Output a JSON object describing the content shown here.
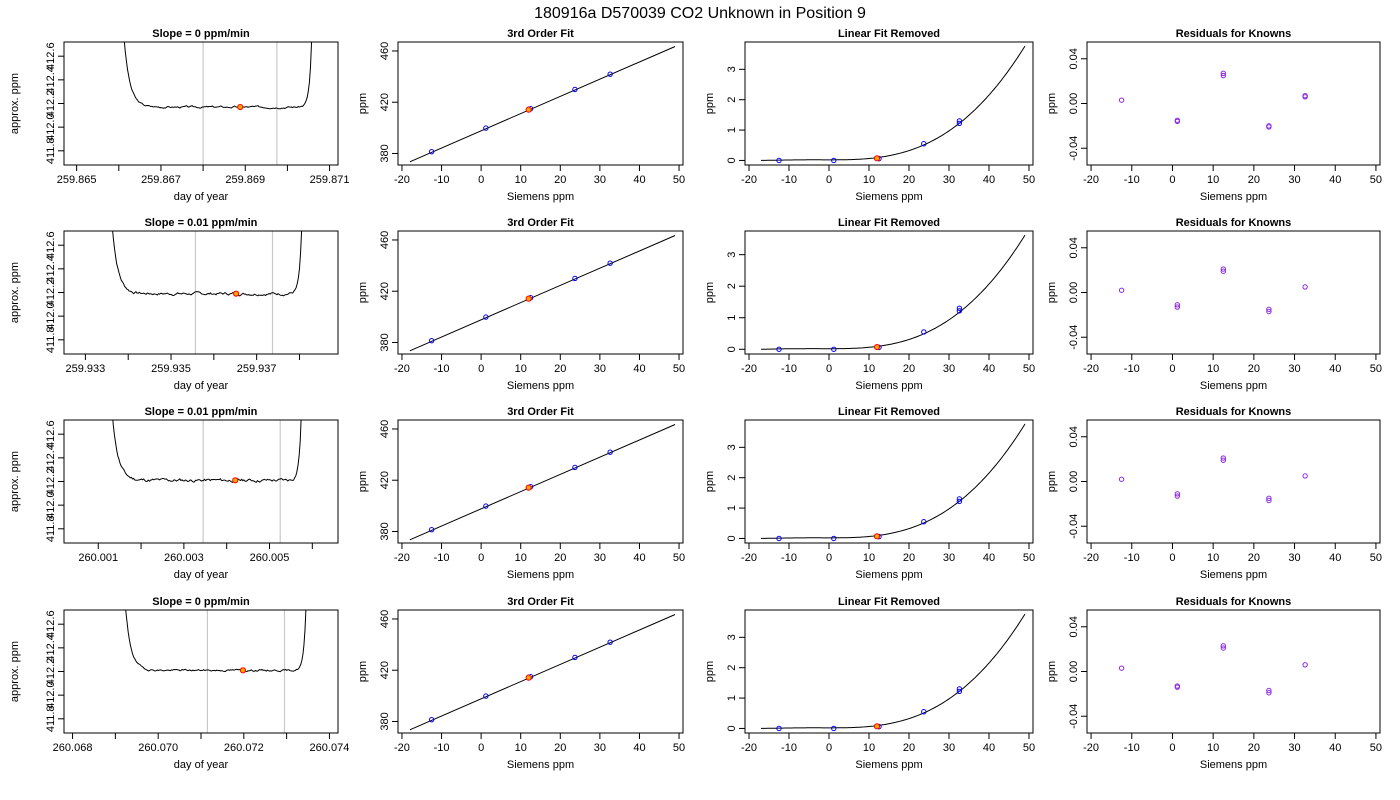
{
  "figure_title": "180916a      D570039   CO2 Unknown in Position  9",
  "colors": {
    "line": "#000000",
    "known_point": "#0000ff",
    "resid_point": "#8a2be2",
    "unknown_point": "#ff0000",
    "unknown_fill": "#ffa500",
    "marker_line": "#c8c8c8"
  },
  "chart_data": [
    {
      "type": "line",
      "row": 0,
      "col": 0,
      "panel": "timeseries",
      "title": "Slope =  0  ppm/min",
      "xlabel": "day of year",
      "ylabel": "approx. ppm",
      "xlim": [
        259.8647,
        259.8712
      ],
      "ylim": [
        411.68,
        412.72
      ],
      "xticks": [
        259.865,
        259.866,
        259.867,
        259.868,
        259.869,
        259.87,
        259.871
      ],
      "xtick_labels": [
        "259.865",
        "",
        "259.867",
        "",
        "259.869",
        "",
        "259.871"
      ],
      "yticks": [
        411.8,
        412.0,
        412.2,
        412.4,
        412.6
      ],
      "ytick_labels": [
        "411.8",
        "412.0",
        "412.2",
        "412.4",
        "412.6"
      ],
      "trace": {
        "x_start": 259.8661,
        "x_end": 259.8706,
        "base": 412.17,
        "wiggle": 0.02,
        "seed": 3
      },
      "vlines": [
        259.868,
        259.86975
      ],
      "unknown_point": [
        259.86888,
        412.17
      ]
    },
    {
      "type": "line",
      "row": 0,
      "col": 1,
      "panel": "fit",
      "title": "3rd Order Fit",
      "xlabel": "Siemens ppm",
      "ylabel": "ppm",
      "xlim": [
        -21,
        51
      ],
      "ylim": [
        371,
        467
      ],
      "xticks": [
        -20,
        -10,
        0,
        10,
        20,
        30,
        40,
        50
      ],
      "yticks": [
        380,
        420,
        460
      ],
      "line": {
        "x": [
          -18,
          49
        ],
        "y": [
          373.5,
          463.5
        ]
      },
      "known_points": {
        "x": [
          -12.5,
          1.2,
          12.5,
          23.7,
          32.6
        ],
        "y": [
          381.4,
          399.8,
          414.9,
          430.0,
          441.9
        ]
      },
      "unknown_point": [
        12,
        414.2
      ]
    },
    {
      "type": "line",
      "row": 0,
      "col": 2,
      "panel": "linear_removed",
      "title": "Linear Fit Removed",
      "xlabel": "Siemens ppm",
      "ylabel": "ppm",
      "xlim": [
        -21,
        51
      ],
      "ylim": [
        -0.15,
        3.9
      ],
      "xticks": [
        -20,
        -10,
        0,
        10,
        20,
        30,
        40,
        50
      ],
      "yticks": [
        0,
        1,
        2,
        3
      ],
      "curve": {
        "x_start": -17,
        "x_end": 49,
        "peak_y": 3.75
      },
      "known_points": {
        "x": [
          -12.5,
          1.2,
          12.5,
          23.7,
          32.6,
          32.6
        ],
        "y": [
          0.0,
          0.0,
          0.06,
          0.55,
          1.22,
          1.3
        ]
      },
      "unknown_point": [
        12,
        0.07
      ]
    },
    {
      "type": "scatter",
      "row": 0,
      "col": 3,
      "panel": "residuals",
      "title": "Residuals for Knowns",
      "xlabel": "Siemens ppm",
      "ylabel": "ppm",
      "xlim": [
        -21,
        51
      ],
      "ylim": [
        -0.055,
        0.055
      ],
      "xticks": [
        -20,
        -10,
        0,
        10,
        20,
        30,
        40,
        50
      ],
      "yticks": [
        -0.04,
        0.0,
        0.04
      ],
      "ytick_labels": [
        "-0.04",
        "0.00",
        "0.04"
      ],
      "points": {
        "x": [
          -12.5,
          1.2,
          1.2,
          12.5,
          12.5,
          23.7,
          23.7,
          32.6,
          32.6
        ],
        "y": [
          0.003,
          -0.015,
          -0.016,
          0.027,
          0.025,
          -0.02,
          -0.021,
          0.006,
          0.007
        ]
      }
    },
    {
      "type": "line",
      "row": 1,
      "col": 0,
      "panel": "timeseries",
      "title": "Slope =  0.01  ppm/min",
      "xlabel": "day of year",
      "ylabel": "approx. ppm",
      "xlim": [
        259.9325,
        259.9389
      ],
      "ylim": [
        411.68,
        412.72
      ],
      "xticks": [
        259.933,
        259.934,
        259.935,
        259.936,
        259.937,
        259.938
      ],
      "xtick_labels": [
        "259.933",
        "",
        "259.935",
        "",
        "259.937",
        ""
      ],
      "yticks": [
        411.8,
        412.0,
        412.2,
        412.4,
        412.6
      ],
      "ytick_labels": [
        "411.8",
        "412.0",
        "412.2",
        "412.4",
        "412.6"
      ],
      "trace": {
        "x_start": 259.9336,
        "x_end": 259.93808,
        "base": 412.19,
        "wiggle": 0.03,
        "seed": 7
      },
      "vlines": [
        259.93557,
        259.93737
      ],
      "unknown_point": [
        259.93652,
        412.19
      ]
    },
    {
      "type": "line",
      "row": 1,
      "col": 1,
      "panel": "fit",
      "title": "3rd Order Fit",
      "xlabel": "Siemens ppm",
      "ylabel": "ppm",
      "xlim": [
        -21,
        51
      ],
      "ylim": [
        371,
        467
      ],
      "xticks": [
        -20,
        -10,
        0,
        10,
        20,
        30,
        40,
        50
      ],
      "yticks": [
        380,
        420,
        460
      ],
      "line": {
        "x": [
          -18,
          49
        ],
        "y": [
          373.5,
          463.5
        ]
      },
      "known_points": {
        "x": [
          -12.5,
          1.2,
          12.5,
          23.7,
          32.6
        ],
        "y": [
          381.4,
          399.8,
          414.9,
          430.0,
          441.9
        ]
      },
      "unknown_point": [
        12,
        414.2
      ]
    },
    {
      "type": "line",
      "row": 1,
      "col": 2,
      "panel": "linear_removed",
      "title": "Linear Fit Removed",
      "xlabel": "Siemens ppm",
      "ylabel": "ppm",
      "xlim": [
        -21,
        51
      ],
      "ylim": [
        -0.15,
        3.75
      ],
      "xticks": [
        -20,
        -10,
        0,
        10,
        20,
        30,
        40,
        50
      ],
      "yticks": [
        0,
        1,
        2,
        3
      ],
      "curve": {
        "x_start": -17,
        "x_end": 49,
        "peak_y": 3.6
      },
      "known_points": {
        "x": [
          -12.5,
          1.2,
          12.5,
          23.7,
          32.6,
          32.6
        ],
        "y": [
          0.0,
          0.0,
          0.06,
          0.55,
          1.22,
          1.3
        ]
      },
      "unknown_point": [
        12,
        0.07
      ]
    },
    {
      "type": "scatter",
      "row": 1,
      "col": 3,
      "panel": "residuals",
      "title": "Residuals for Knowns",
      "xlabel": "Siemens ppm",
      "ylabel": "ppm",
      "xlim": [
        -21,
        51
      ],
      "ylim": [
        -0.055,
        0.055
      ],
      "xticks": [
        -20,
        -10,
        0,
        10,
        20,
        30,
        40,
        50
      ],
      "yticks": [
        -0.04,
        0.0,
        0.04
      ],
      "ytick_labels": [
        "-0.04",
        "0.00",
        "0.04"
      ],
      "points": {
        "x": [
          -12.5,
          1.2,
          1.2,
          12.5,
          12.5,
          23.7,
          23.7,
          32.6
        ],
        "y": [
          0.002,
          -0.011,
          -0.013,
          0.021,
          0.019,
          -0.015,
          -0.017,
          0.005
        ]
      }
    },
    {
      "type": "line",
      "row": 2,
      "col": 0,
      "panel": "timeseries",
      "title": "Slope =  0.01  ppm/min",
      "xlabel": "day of year",
      "ylabel": "approx. ppm",
      "xlim": [
        260.0002,
        260.0066
      ],
      "ylim": [
        411.68,
        412.72
      ],
      "xticks": [
        260.001,
        260.002,
        260.003,
        260.004,
        260.005,
        260.006
      ],
      "xtick_labels": [
        "260.001",
        "",
        "260.003",
        "",
        "260.005",
        ""
      ],
      "yticks": [
        411.8,
        412.0,
        412.2,
        412.4,
        412.6
      ],
      "ytick_labels": [
        "411.8",
        "412.0",
        "412.2",
        "412.4",
        "412.6"
      ],
      "trace": {
        "x_start": 260.0013,
        "x_end": 260.00577,
        "base": 412.21,
        "wiggle": 0.035,
        "seed": 11
      },
      "vlines": [
        260.00345,
        260.00525
      ],
      "unknown_point": [
        260.0042,
        412.21
      ]
    },
    {
      "type": "line",
      "row": 2,
      "col": 1,
      "panel": "fit",
      "title": "3rd Order Fit",
      "xlabel": "Siemens ppm",
      "ylabel": "ppm",
      "xlim": [
        -21,
        51
      ],
      "ylim": [
        371,
        467
      ],
      "xticks": [
        -20,
        -10,
        0,
        10,
        20,
        30,
        40,
        50
      ],
      "yticks": [
        380,
        420,
        460
      ],
      "line": {
        "x": [
          -18,
          49
        ],
        "y": [
          373.5,
          463.5
        ]
      },
      "known_points": {
        "x": [
          -12.5,
          1.2,
          12.5,
          23.7,
          32.6
        ],
        "y": [
          381.4,
          399.8,
          414.9,
          430.0,
          441.9
        ]
      },
      "unknown_point": [
        12,
        414.2
      ]
    },
    {
      "type": "line",
      "row": 2,
      "col": 2,
      "panel": "linear_removed",
      "title": "Linear Fit Removed",
      "xlabel": "Siemens ppm",
      "ylabel": "ppm",
      "xlim": [
        -21,
        51
      ],
      "ylim": [
        -0.15,
        3.9
      ],
      "xticks": [
        -20,
        -10,
        0,
        10,
        20,
        30,
        40,
        50
      ],
      "yticks": [
        0,
        1,
        2,
        3
      ],
      "curve": {
        "x_start": -17,
        "x_end": 49,
        "peak_y": 3.75
      },
      "known_points": {
        "x": [
          -12.5,
          1.2,
          12.5,
          23.7,
          32.6,
          32.6
        ],
        "y": [
          0.0,
          0.0,
          0.06,
          0.55,
          1.22,
          1.3
        ]
      },
      "unknown_point": [
        12,
        0.07
      ]
    },
    {
      "type": "scatter",
      "row": 2,
      "col": 3,
      "panel": "residuals",
      "title": "Residuals for Knowns",
      "xlabel": "Siemens ppm",
      "ylabel": "ppm",
      "xlim": [
        -21,
        51
      ],
      "ylim": [
        -0.055,
        0.055
      ],
      "xticks": [
        -20,
        -10,
        0,
        10,
        20,
        30,
        40,
        50
      ],
      "yticks": [
        -0.04,
        0.0,
        0.04
      ],
      "ytick_labels": [
        "-0.04",
        "0.00",
        "0.04"
      ],
      "points": {
        "x": [
          -12.5,
          1.2,
          1.2,
          12.5,
          12.5,
          23.7,
          23.7,
          32.6
        ],
        "y": [
          0.002,
          -0.011,
          -0.013,
          0.021,
          0.019,
          -0.015,
          -0.017,
          0.005
        ]
      }
    },
    {
      "type": "line",
      "row": 3,
      "col": 0,
      "panel": "timeseries",
      "title": "Slope =  0  ppm/min",
      "xlabel": "day of year",
      "ylabel": "approx. ppm",
      "xlim": [
        260.0678,
        260.0742
      ],
      "ylim": [
        411.68,
        412.72
      ],
      "xticks": [
        260.068,
        260.069,
        260.07,
        260.071,
        260.072,
        260.073,
        260.074
      ],
      "xtick_labels": [
        "260.068",
        "",
        "260.070",
        "",
        "260.072",
        "",
        "260.074"
      ],
      "yticks": [
        411.8,
        412.0,
        412.2,
        412.4,
        412.6
      ],
      "ytick_labels": [
        "411.8",
        "412.0",
        "412.2",
        "412.4",
        "412.6"
      ],
      "trace": {
        "x_start": 260.0692,
        "x_end": 260.07348,
        "base": 412.21,
        "wiggle": 0.02,
        "seed": 19
      },
      "vlines": [
        260.07115,
        260.07295
      ],
      "unknown_point": [
        260.07198,
        412.21
      ]
    },
    {
      "type": "line",
      "row": 3,
      "col": 1,
      "panel": "fit",
      "title": "3rd Order Fit",
      "xlabel": "Siemens ppm",
      "ylabel": "ppm",
      "xlim": [
        -21,
        51
      ],
      "ylim": [
        371,
        467
      ],
      "xticks": [
        -20,
        -10,
        0,
        10,
        20,
        30,
        40,
        50
      ],
      "yticks": [
        380,
        420,
        460
      ],
      "line": {
        "x": [
          -18,
          49
        ],
        "y": [
          373.5,
          463.5
        ]
      },
      "known_points": {
        "x": [
          -12.5,
          1.2,
          12.5,
          23.7,
          32.6
        ],
        "y": [
          381.4,
          399.8,
          414.9,
          430.0,
          441.9
        ]
      },
      "unknown_point": [
        12,
        414.2
      ]
    },
    {
      "type": "line",
      "row": 3,
      "col": 2,
      "panel": "linear_removed",
      "title": "Linear Fit Removed",
      "xlabel": "Siemens ppm",
      "ylabel": "ppm",
      "xlim": [
        -21,
        51
      ],
      "ylim": [
        -0.15,
        3.9
      ],
      "xticks": [
        -20,
        -10,
        0,
        10,
        20,
        30,
        40,
        50
      ],
      "yticks": [
        0,
        1,
        2,
        3
      ],
      "curve": {
        "x_start": -17,
        "x_end": 49,
        "peak_y": 3.75
      },
      "known_points": {
        "x": [
          -12.5,
          1.2,
          12.5,
          23.7,
          32.6,
          32.6
        ],
        "y": [
          0.0,
          0.0,
          0.06,
          0.55,
          1.22,
          1.3
        ]
      },
      "unknown_point": [
        12,
        0.07
      ]
    },
    {
      "type": "scatter",
      "row": 3,
      "col": 3,
      "panel": "residuals",
      "title": "Residuals for Knowns",
      "xlabel": "Siemens ppm",
      "ylabel": "ppm",
      "xlim": [
        -21,
        51
      ],
      "ylim": [
        -0.055,
        0.055
      ],
      "xticks": [
        -20,
        -10,
        0,
        10,
        20,
        30,
        40,
        50
      ],
      "yticks": [
        -0.04,
        0.0,
        0.04
      ],
      "ytick_labels": [
        "-0.04",
        "0.00",
        "0.04"
      ],
      "points": {
        "x": [
          -12.5,
          1.2,
          1.2,
          12.5,
          12.5,
          23.7,
          23.7,
          32.6
        ],
        "y": [
          0.003,
          -0.013,
          -0.014,
          0.023,
          0.021,
          -0.017,
          -0.019,
          0.006
        ]
      }
    }
  ]
}
